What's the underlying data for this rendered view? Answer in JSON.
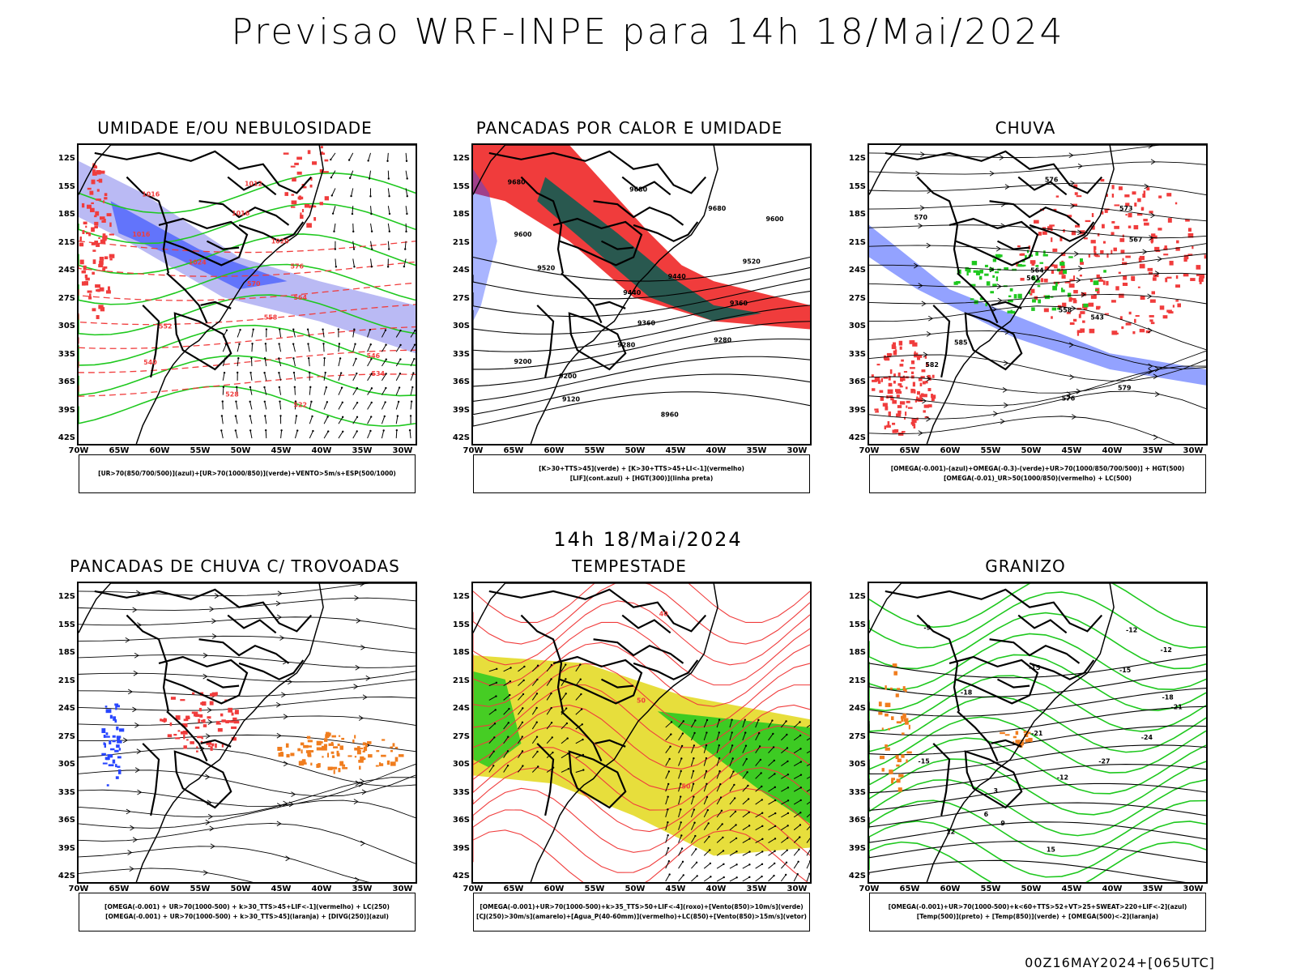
{
  "header": {
    "title": "Previsao WRF-INPE  para 14h 18/Mai/2024"
  },
  "middle_label": "14h 18/Mai/2024",
  "footer": "00Z16MAY2024+[065UTC]",
  "axes": {
    "lat_labels": [
      "12S",
      "15S",
      "18S",
      "21S",
      "24S",
      "27S",
      "30S",
      "33S",
      "36S",
      "39S",
      "42S"
    ],
    "lon_labels": [
      "70W",
      "65W",
      "60W",
      "55W",
      "50W",
      "45W",
      "40W",
      "35W",
      "30W"
    ]
  },
  "colors": {
    "red": "#f03c3c",
    "green": "#1ec81e",
    "blue": "#2846ff",
    "lavender": "#9c9cf0",
    "darkteal": "#1e5a50",
    "yellow": "#e6dc32",
    "orange": "#f07d1e",
    "black": "#000000"
  },
  "panels": [
    {
      "id": "umidade",
      "title": "UMIDADE E/OU NEBULOSIDADE",
      "legend": [
        "[UR>70(850/700/500)](azul)+[UR>70(1000/850)](verde)+VENTO>5m/s+ESP(500/1000)"
      ],
      "contour_labels": [
        "1012",
        "1016",
        "1016",
        "1016",
        "1020",
        "1024",
        "576",
        "570",
        "564",
        "558",
        "552",
        "546",
        "540",
        "534",
        "528",
        "522"
      ]
    },
    {
      "id": "pancadas-calor",
      "title": "PANCADAS POR CALOR E UMIDADE",
      "legend": [
        "[K>30+TTS>45](verde) + [K>30+TTS>45+LI<-1](vermelho)",
        "[LIF](cont.azul) + [HGT(300)](linha preta)"
      ],
      "contour_labels": [
        "9680",
        "9680",
        "9680",
        "9600",
        "9600",
        "9520",
        "9520",
        "9440",
        "9440",
        "9360",
        "9360",
        "9280",
        "9280",
        "9200",
        "9200",
        "9120",
        "8960"
      ]
    },
    {
      "id": "chuva",
      "title": "CHUVA",
      "legend": [
        "[OMEGA(-0.001)-(azul)+OMEGA(-0.3)-(verde)+UR>70(1000/850/700/500)] + HGT(500)",
        "[OMEGA(-0.01)_UR>50(1000/850)(vermelho) + LC(500)"
      ],
      "contour_labels": [
        "576",
        "573",
        "570",
        "567",
        "564",
        "561",
        "558",
        "543",
        "585",
        "582",
        "579",
        "576"
      ]
    },
    {
      "id": "pancadas-trovoadas",
      "title": "PANCADAS DE CHUVA C/ TROVOADAS",
      "legend": [
        "[OMEGA(-0.001) + UR>70(1000-500) + k>30_TTS>45+LIF<-1](vermelho) + LC(250)",
        "[OMEGA(-0.001) + UR>70(1000-500) + k>30_TTS>45](laranja) + [DIVG(250)](azul)"
      ],
      "contour_labels": []
    },
    {
      "id": "tempestade",
      "title": "TEMPESTADE",
      "legend": [
        "[OMEGA(-0.001)+UR>70(1000-500)+k>35_TTS>50+LIF<-4](roxo)+[Vento(850)>10m/s](verde)",
        "[CJ(250)>30m/s](amarelo)+[Agua_P(40-60mm)](vermelho)+LC(850)+[Vento(850)>15m/s](vetor)"
      ],
      "contour_labels": [
        "40",
        "50",
        "50"
      ]
    },
    {
      "id": "granizo",
      "title": "GRANIZO",
      "legend": [
        "[OMEGA(-0.001)+UR>70(1000-500)+k<60+TTS>52+VT>25+SWEAT>220+LIF<-2](azul)",
        "[Temp(500)](preto) + [Temp(850)](verde) + [OMEGA(500)<-2](laranja)"
      ],
      "contour_labels": [
        "-9",
        "-12",
        "-12",
        "-15",
        "-15",
        "-18",
        "-18",
        "-21",
        "-21",
        "-24",
        "-27",
        "-15",
        "-12",
        "3",
        "6",
        "9",
        "12",
        "15"
      ]
    }
  ]
}
